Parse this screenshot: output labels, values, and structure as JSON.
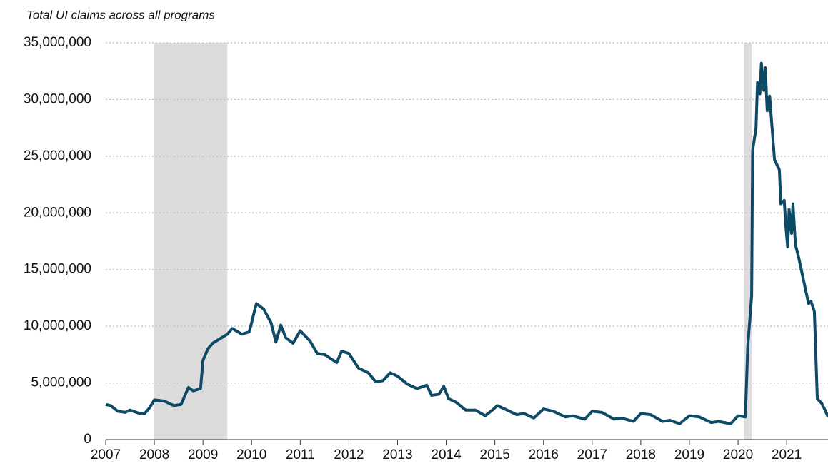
{
  "chart_data": {
    "type": "line",
    "subtitle": "Total UI claims across all programs",
    "xlim": [
      2007,
      2021.85
    ],
    "xticks": [
      2007,
      2008,
      2009,
      2010,
      2011,
      2012,
      2013,
      2014,
      2015,
      2016,
      2017,
      2018,
      2019,
      2020,
      2021
    ],
    "ylim": [
      0,
      35000000
    ],
    "yticks": [
      0,
      {
        "value": 5000000,
        "label": "5,000,000"
      },
      {
        "value": 10000000,
        "label": "10,000,000"
      },
      {
        "value": 15000000,
        "label": "15,000,000"
      },
      {
        "value": 20000000,
        "label": "20,000,000"
      },
      {
        "value": 25000000,
        "label": "25,000,000"
      },
      {
        "value": 30000000,
        "label": "30,000,000"
      },
      {
        "value": 35000000,
        "label": "35,000,000"
      }
    ],
    "grid": true,
    "recessions": [
      [
        2008.0,
        2009.5
      ],
      [
        2020.12,
        2020.28
      ]
    ],
    "recession_color": "#dcdcdc",
    "series": [
      {
        "color": "#0d4a66",
        "x": [
          2007.0,
          2007.1,
          2007.25,
          2007.4,
          2007.5,
          2007.7,
          2007.8,
          2007.9,
          2008.0,
          2008.2,
          2008.4,
          2008.55,
          2008.7,
          2008.8,
          2008.95,
          2009.0,
          2009.1,
          2009.2,
          2009.35,
          2009.5,
          2009.6,
          2009.8,
          2009.95,
          2010.0,
          2010.05,
          2010.1,
          2010.25,
          2010.4,
          2010.5,
          2010.6,
          2010.7,
          2010.85,
          2011.0,
          2011.2,
          2011.35,
          2011.5,
          2011.75,
          2011.85,
          2012.0,
          2012.2,
          2012.4,
          2012.55,
          2012.7,
          2012.85,
          2013.0,
          2013.2,
          2013.4,
          2013.6,
          2013.7,
          2013.85,
          2013.95,
          2014.05,
          2014.2,
          2014.4,
          2014.6,
          2014.8,
          2014.95,
          2015.05,
          2015.2,
          2015.45,
          2015.6,
          2015.8,
          2016.0,
          2016.2,
          2016.45,
          2016.6,
          2016.85,
          2017.0,
          2017.2,
          2017.45,
          2017.6,
          2017.85,
          2018.0,
          2018.2,
          2018.45,
          2018.6,
          2018.8,
          2019.0,
          2019.2,
          2019.45,
          2019.6,
          2019.85,
          2020.0,
          2020.15,
          2020.2,
          2020.28,
          2020.3,
          2020.37,
          2020.4,
          2020.45,
          2020.48,
          2020.53,
          2020.56,
          2020.6,
          2020.65,
          2020.7,
          2020.75,
          2020.85,
          2020.88,
          2020.95,
          2020.98,
          2021.02,
          2021.05,
          2021.1,
          2021.13,
          2021.18,
          2021.25,
          2021.35,
          2021.45,
          2021.5,
          2021.57,
          2021.63,
          2021.72,
          2021.8,
          2021.85
        ],
        "values": [
          3100000,
          3000000,
          2500000,
          2400000,
          2600000,
          2300000,
          2300000,
          2800000,
          3500000,
          3400000,
          3000000,
          3100000,
          4600000,
          4300000,
          4500000,
          7000000,
          8000000,
          8500000,
          8900000,
          9300000,
          9800000,
          9300000,
          9500000,
          10300000,
          11200000,
          12000000,
          11500000,
          10300000,
          8600000,
          10100000,
          9000000,
          8500000,
          9600000,
          8700000,
          7600000,
          7500000,
          6800000,
          7800000,
          7600000,
          6300000,
          5900000,
          5100000,
          5200000,
          5900000,
          5600000,
          4900000,
          4500000,
          4800000,
          3900000,
          4000000,
          4700000,
          3600000,
          3300000,
          2600000,
          2600000,
          2100000,
          2600000,
          3000000,
          2700000,
          2200000,
          2300000,
          1900000,
          2700000,
          2500000,
          2000000,
          2100000,
          1800000,
          2500000,
          2400000,
          1800000,
          1900000,
          1600000,
          2300000,
          2200000,
          1600000,
          1700000,
          1400000,
          2100000,
          2000000,
          1500000,
          1600000,
          1400000,
          2100000,
          2000000,
          8200000,
          12700000,
          25500000,
          27500000,
          31500000,
          30500000,
          33200000,
          30800000,
          32800000,
          29000000,
          30300000,
          27500000,
          24700000,
          23800000,
          20800000,
          21100000,
          19000000,
          17000000,
          20300000,
          18200000,
          20800000,
          17200000,
          16000000,
          14000000,
          12000000,
          12200000,
          11300000,
          3600000,
          3200000,
          2500000,
          2000000
        ]
      }
    ]
  }
}
